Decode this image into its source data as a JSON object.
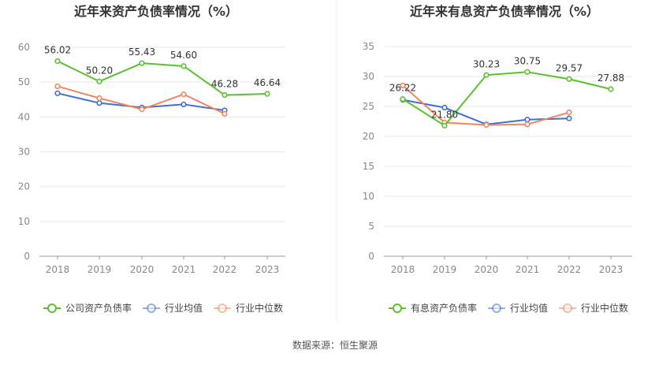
{
  "source": "数据来源：恒生聚源",
  "chart_data": [
    {
      "type": "line",
      "title": "近年来资产负债率情况（%）",
      "categories": [
        "2018",
        "2019",
        "2020",
        "2021",
        "2022",
        "2023"
      ],
      "ylim": [
        0,
        60
      ],
      "yticks": [
        0,
        10,
        20,
        30,
        40,
        50,
        60
      ],
      "grid": true,
      "legend_position": "bottom",
      "series": [
        {
          "name": "公司资产负债率",
          "color": "#5ac12f",
          "values": [
            56.02,
            50.2,
            55.43,
            54.6,
            46.28,
            46.64
          ],
          "labels": [
            "56.02",
            "50.20",
            "55.43",
            "54.60",
            "46.28",
            "46.64"
          ]
        },
        {
          "name": "行业均值",
          "color": "#3f6fd6",
          "values": [
            46.8,
            44.0,
            42.7,
            43.6,
            41.9,
            null
          ]
        },
        {
          "name": "行业中位数",
          "color": "#f2865e",
          "values": [
            48.8,
            45.4,
            42.2,
            46.5,
            40.9,
            null
          ]
        }
      ]
    },
    {
      "type": "line",
      "title": "近年来有息资产负债率情况（%）",
      "categories": [
        "2018",
        "2019",
        "2020",
        "2021",
        "2022",
        "2023"
      ],
      "ylim": [
        0,
        35
      ],
      "yticks": [
        0,
        5,
        10,
        15,
        20,
        25,
        30,
        35
      ],
      "grid": true,
      "legend_position": "bottom",
      "series": [
        {
          "name": "有息资产负债率",
          "color": "#5ac12f",
          "values": [
            26.22,
            21.8,
            30.23,
            30.75,
            29.57,
            27.88
          ],
          "labels": [
            "26.22",
            "21.80",
            "30.23",
            "30.75",
            "29.57",
            "27.88"
          ]
        },
        {
          "name": "行业均值",
          "color": "#3f6fd6",
          "values": [
            26.1,
            24.8,
            22.0,
            22.8,
            23.0,
            null
          ]
        },
        {
          "name": "行业中位数",
          "color": "#f2865e",
          "values": [
            28.5,
            22.3,
            21.9,
            22.0,
            24.0,
            null
          ]
        }
      ]
    }
  ]
}
